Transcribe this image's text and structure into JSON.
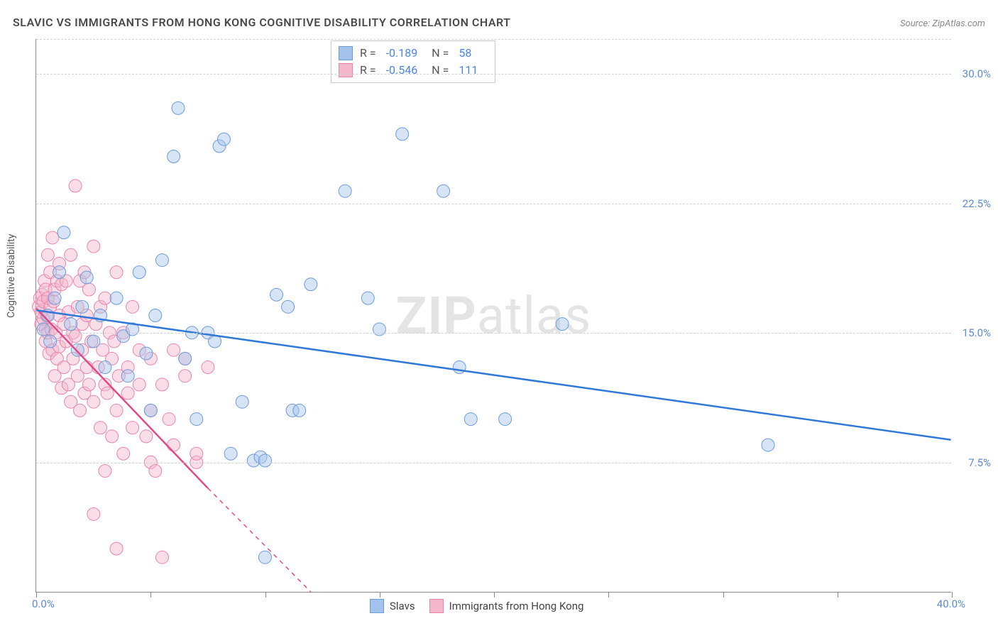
{
  "title": "SLAVIC VS IMMIGRANTS FROM HONG KONG COGNITIVE DISABILITY CORRELATION CHART",
  "source": "Source: ZipAtlas.com",
  "y_axis_label": "Cognitive Disability",
  "watermark_bold": "ZIP",
  "watermark_rest": "atlas",
  "chart": {
    "type": "scatter",
    "xlim": [
      0,
      40
    ],
    "ylim": [
      0,
      32
    ],
    "x_tick_positions": [
      0,
      5,
      10,
      15,
      20,
      25,
      30,
      35,
      40
    ],
    "y_grid": [
      {
        "value": 7.5,
        "label": "7.5%"
      },
      {
        "value": 15.0,
        "label": "15.0%"
      },
      {
        "value": 22.5,
        "label": "22.5%"
      },
      {
        "value": 30.0,
        "label": "30.0%"
      }
    ],
    "x_origin_label": "0.0%",
    "x_end_label": "40.0%",
    "background_color": "#ffffff",
    "grid_color": "#d0d0d0",
    "axis_color": "#888888",
    "tick_label_color": "#5b8ad6",
    "marker_radius": 9,
    "marker_opacity": 0.45,
    "line_width_solid": 2.5,
    "line_width_dashed": 1.5
  },
  "series": {
    "slavs": {
      "label": "Slavs",
      "fill_color": "#a3c3ec",
      "stroke_color": "#6a9cdc",
      "line_color": "#2f78d8",
      "R": "-0.189",
      "N": "58",
      "regression": {
        "x1": 0,
        "y1": 16.3,
        "x2": 40,
        "y2": 8.8
      },
      "points": [
        [
          0.3,
          15.2
        ],
        [
          0.5,
          16.0
        ],
        [
          0.6,
          14.5
        ],
        [
          0.8,
          17.0
        ],
        [
          1.0,
          18.5
        ],
        [
          1.2,
          20.8
        ],
        [
          1.5,
          15.5
        ],
        [
          1.8,
          14.0
        ],
        [
          2.0,
          16.5
        ],
        [
          2.2,
          18.2
        ],
        [
          2.5,
          14.5
        ],
        [
          2.8,
          16.0
        ],
        [
          3.0,
          13.0
        ],
        [
          3.5,
          17.0
        ],
        [
          3.8,
          14.8
        ],
        [
          4.0,
          12.5
        ],
        [
          4.2,
          15.2
        ],
        [
          4.5,
          18.5
        ],
        [
          4.8,
          13.8
        ],
        [
          5.0,
          10.5
        ],
        [
          5.2,
          16.0
        ],
        [
          5.5,
          19.2
        ],
        [
          6.0,
          25.2
        ],
        [
          6.2,
          28.0
        ],
        [
          6.5,
          13.5
        ],
        [
          6.8,
          15.0
        ],
        [
          7.0,
          10.0
        ],
        [
          7.5,
          15.0
        ],
        [
          7.8,
          14.5
        ],
        [
          8.0,
          25.8
        ],
        [
          8.2,
          26.2
        ],
        [
          8.5,
          8.0
        ],
        [
          9.0,
          11.0
        ],
        [
          9.5,
          7.6
        ],
        [
          9.8,
          7.8
        ],
        [
          10.0,
          7.6
        ],
        [
          10.0,
          2.0
        ],
        [
          10.5,
          17.2
        ],
        [
          11.0,
          16.5
        ],
        [
          11.2,
          10.5
        ],
        [
          11.5,
          10.5
        ],
        [
          12.0,
          17.8
        ],
        [
          13.5,
          23.2
        ],
        [
          14.5,
          17.0
        ],
        [
          15.0,
          15.2
        ],
        [
          16.0,
          26.5
        ],
        [
          17.8,
          23.2
        ],
        [
          18.5,
          13.0
        ],
        [
          19.0,
          10.0
        ],
        [
          20.5,
          10.0
        ],
        [
          23.0,
          15.5
        ],
        [
          32.0,
          8.5
        ]
      ]
    },
    "hk": {
      "label": "Immigrants from Hong Kong",
      "fill_color": "#f3b6ca",
      "stroke_color": "#e885ac",
      "line_color": "#e14a88",
      "R": "-0.546",
      "N": "111",
      "regression_solid": {
        "x1": 0,
        "y1": 16.4,
        "x2": 7.5,
        "y2": 6.0
      },
      "regression_dashed": {
        "x1": 7.5,
        "y1": 6.0,
        "x2": 12.0,
        "y2": 0.0
      },
      "points": [
        [
          0.1,
          16.5
        ],
        [
          0.15,
          17.0
        ],
        [
          0.2,
          15.5
        ],
        [
          0.2,
          16.2
        ],
        [
          0.25,
          17.2
        ],
        [
          0.3,
          15.8
        ],
        [
          0.3,
          16.8
        ],
        [
          0.35,
          18.0
        ],
        [
          0.4,
          14.5
        ],
        [
          0.4,
          15.2
        ],
        [
          0.4,
          17.5
        ],
        [
          0.45,
          16.0
        ],
        [
          0.5,
          19.5
        ],
        [
          0.5,
          15.0
        ],
        [
          0.5,
          17.0
        ],
        [
          0.55,
          13.8
        ],
        [
          0.6,
          16.5
        ],
        [
          0.6,
          18.5
        ],
        [
          0.65,
          15.2
        ],
        [
          0.7,
          20.5
        ],
        [
          0.7,
          14.0
        ],
        [
          0.75,
          16.8
        ],
        [
          0.8,
          17.5
        ],
        [
          0.8,
          12.5
        ],
        [
          0.85,
          15.0
        ],
        [
          0.9,
          18.0
        ],
        [
          0.9,
          13.5
        ],
        [
          1.0,
          19.0
        ],
        [
          1.0,
          14.2
        ],
        [
          1.0,
          16.0
        ],
        [
          1.1,
          17.8
        ],
        [
          1.1,
          11.8
        ],
        [
          1.2,
          15.5
        ],
        [
          1.2,
          13.0
        ],
        [
          1.3,
          18.0
        ],
        [
          1.3,
          14.5
        ],
        [
          1.4,
          16.2
        ],
        [
          1.4,
          12.0
        ],
        [
          1.5,
          19.5
        ],
        [
          1.5,
          11.0
        ],
        [
          1.6,
          15.0
        ],
        [
          1.6,
          13.5
        ],
        [
          1.7,
          23.5
        ],
        [
          1.7,
          14.8
        ],
        [
          1.8,
          12.5
        ],
        [
          1.8,
          16.5
        ],
        [
          1.9,
          18.0
        ],
        [
          1.9,
          10.5
        ],
        [
          2.0,
          14.0
        ],
        [
          2.0,
          15.5
        ],
        [
          2.1,
          18.5
        ],
        [
          2.1,
          11.5
        ],
        [
          2.2,
          13.0
        ],
        [
          2.2,
          16.0
        ],
        [
          2.3,
          17.5
        ],
        [
          2.3,
          12.0
        ],
        [
          2.4,
          14.5
        ],
        [
          2.5,
          20.0
        ],
        [
          2.5,
          11.0
        ],
        [
          2.5,
          4.5
        ],
        [
          2.6,
          15.5
        ],
        [
          2.7,
          13.0
        ],
        [
          2.8,
          16.5
        ],
        [
          2.8,
          9.5
        ],
        [
          2.9,
          14.0
        ],
        [
          3.0,
          12.0
        ],
        [
          3.0,
          17.0
        ],
        [
          3.0,
          7.0
        ],
        [
          3.1,
          11.5
        ],
        [
          3.2,
          15.0
        ],
        [
          3.3,
          13.5
        ],
        [
          3.3,
          9.0
        ],
        [
          3.4,
          14.5
        ],
        [
          3.5,
          18.5
        ],
        [
          3.5,
          10.5
        ],
        [
          3.5,
          2.5
        ],
        [
          3.6,
          12.5
        ],
        [
          3.8,
          15.0
        ],
        [
          3.8,
          8.0
        ],
        [
          4.0,
          13.0
        ],
        [
          4.0,
          11.5
        ],
        [
          4.2,
          16.5
        ],
        [
          4.2,
          9.5
        ],
        [
          4.5,
          12.0
        ],
        [
          4.5,
          14.0
        ],
        [
          4.8,
          9.0
        ],
        [
          5.0,
          10.5
        ],
        [
          5.0,
          13.5
        ],
        [
          5.0,
          7.5
        ],
        [
          5.2,
          7.0
        ],
        [
          5.5,
          12.0
        ],
        [
          5.5,
          2.0
        ],
        [
          5.8,
          10.0
        ],
        [
          6.0,
          8.5
        ],
        [
          6.0,
          14.0
        ],
        [
          6.5,
          12.5
        ],
        [
          6.5,
          13.5
        ],
        [
          7.0,
          7.5
        ],
        [
          7.0,
          8.0
        ],
        [
          7.5,
          13.0
        ]
      ]
    }
  },
  "stats_box": {
    "R_label": "R =",
    "N_label": "N ="
  },
  "bottom_legend": {
    "items": [
      "slavs",
      "hk"
    ]
  }
}
